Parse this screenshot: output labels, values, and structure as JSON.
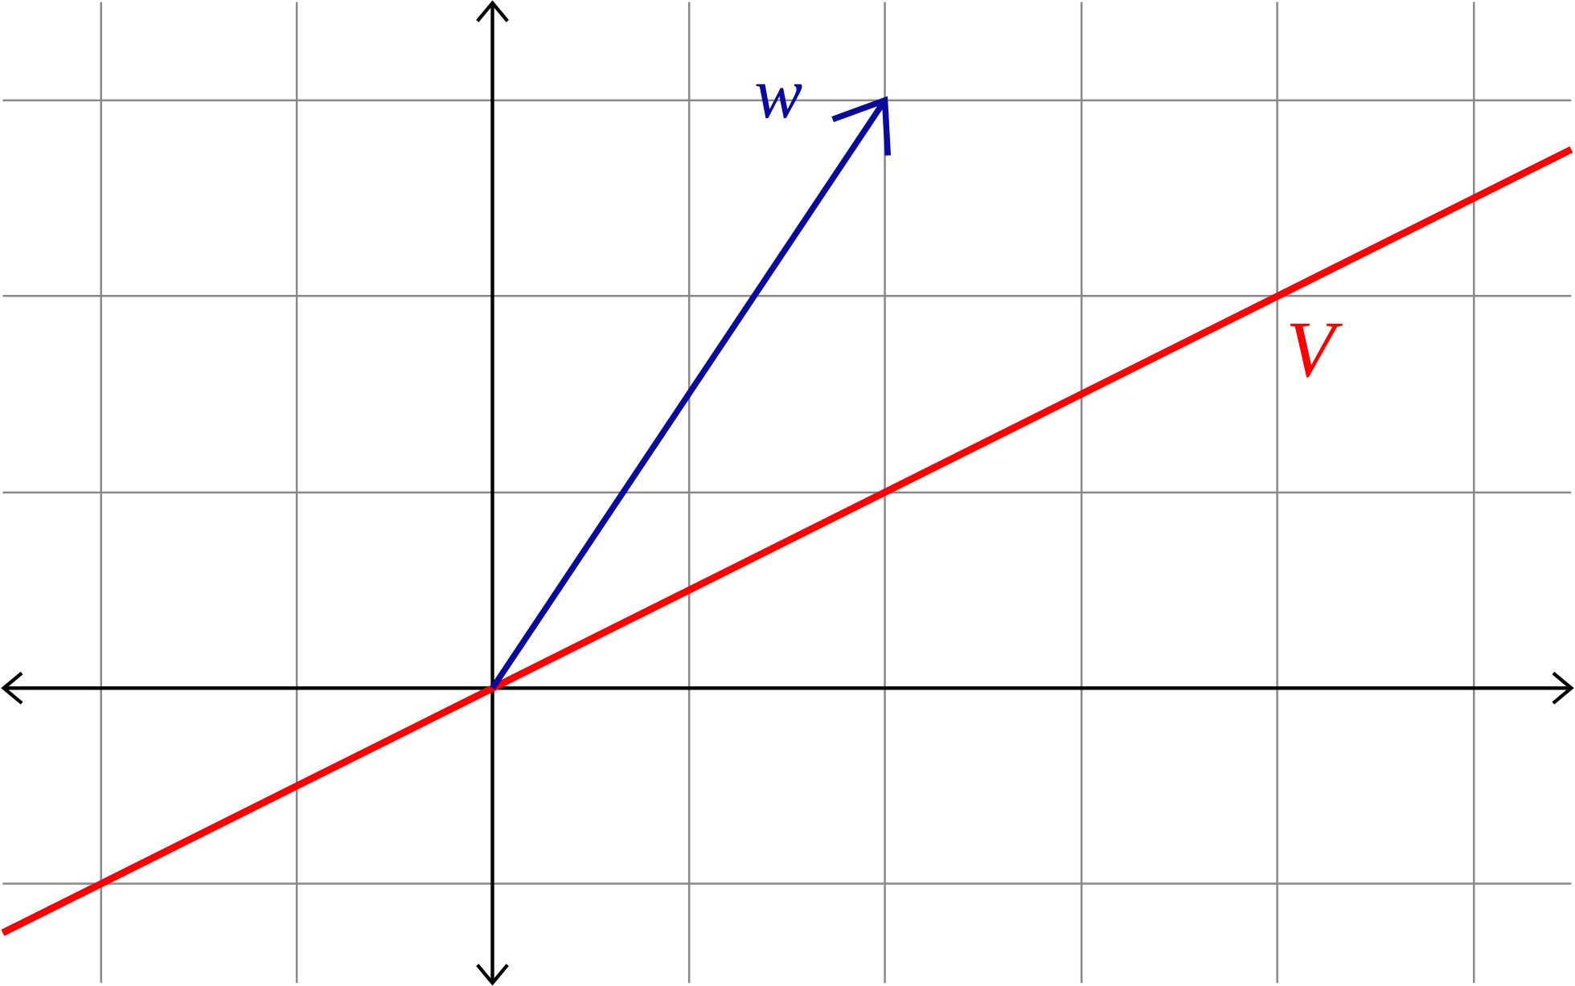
{
  "labels": {
    "vector": "w",
    "line": "V"
  }
}
